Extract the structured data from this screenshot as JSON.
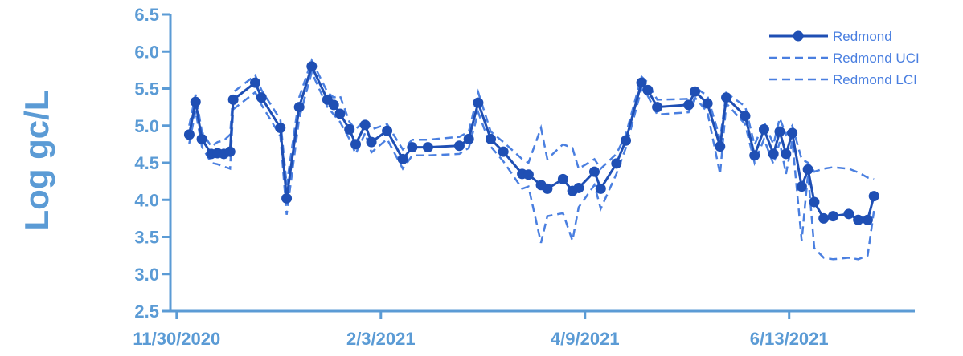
{
  "chart_data": {
    "type": "line",
    "ylabel": "Log gc/L",
    "xlabel": "",
    "ylim": [
      2.5,
      6.5
    ],
    "yticks": [
      "2.5",
      "3.0",
      "3.5",
      "4.0",
      "4.5",
      "5.0",
      "5.5",
      "6.0",
      "6.5"
    ],
    "xlim": [
      "2020-11-28",
      "2021-07-23"
    ],
    "xticks": [
      {
        "date": "2020-11-30",
        "label": "11/30/2020"
      },
      {
        "date": "2021-02-03",
        "label": "2/3/2021"
      },
      {
        "date": "2021-04-09",
        "label": "4/9/2021"
      },
      {
        "date": "2021-06-13",
        "label": "6/13/2021"
      }
    ],
    "legend_position": "top-right",
    "series": [
      {
        "name": "Redmond",
        "style": "solid-markers",
        "color": "#1f4fb4",
        "x": [
          "2020-12-04",
          "2020-12-06",
          "2020-12-08",
          "2020-12-11",
          "2020-12-13",
          "2020-12-15",
          "2020-12-17",
          "2020-12-18",
          "2020-12-25",
          "2020-12-27",
          "2021-01-02",
          "2021-01-04",
          "2021-01-08",
          "2021-01-12",
          "2021-01-17",
          "2021-01-19",
          "2021-01-21",
          "2021-01-24",
          "2021-01-26",
          "2021-01-29",
          "2021-01-31",
          "2021-02-05",
          "2021-02-10",
          "2021-02-13",
          "2021-02-18",
          "2021-02-28",
          "2021-03-03",
          "2021-03-06",
          "2021-03-10",
          "2021-03-14",
          "2021-03-20",
          "2021-03-22",
          "2021-03-26",
          "2021-03-28",
          "2021-04-02",
          "2021-04-05",
          "2021-04-07",
          "2021-04-12",
          "2021-04-14",
          "2021-04-19",
          "2021-04-22",
          "2021-04-27",
          "2021-04-29",
          "2021-05-02",
          "2021-05-12",
          "2021-05-14",
          "2021-05-18",
          "2021-05-22",
          "2021-05-24",
          "2021-05-30",
          "2021-06-02",
          "2021-06-05",
          "2021-06-08",
          "2021-06-10",
          "2021-06-12",
          "2021-06-14",
          "2021-06-17",
          "2021-06-19",
          "2021-06-21",
          "2021-06-24",
          "2021-06-27",
          "2021-07-02",
          "2021-07-05",
          "2021-07-08",
          "2021-07-10"
        ],
        "values": [
          4.88,
          5.32,
          4.82,
          4.62,
          4.63,
          4.62,
          4.65,
          5.35,
          5.58,
          5.38,
          4.97,
          4.02,
          5.25,
          5.8,
          5.35,
          5.28,
          5.16,
          4.95,
          4.75,
          5.01,
          4.78,
          4.93,
          4.55,
          4.71,
          4.71,
          4.73,
          4.82,
          5.31,
          4.82,
          4.65,
          4.35,
          4.34,
          4.2,
          4.15,
          4.28,
          4.12,
          4.16,
          4.38,
          4.15,
          4.49,
          4.8,
          5.58,
          5.48,
          5.25,
          5.28,
          5.46,
          5.3,
          4.72,
          5.38,
          5.13,
          4.6,
          4.95,
          4.62,
          4.92,
          4.62,
          4.9,
          4.18,
          4.41,
          3.97,
          3.75,
          3.78,
          3.81,
          3.73,
          3.73,
          4.05
        ]
      },
      {
        "name": "Redmond UCI",
        "style": "dashed",
        "color": "#4a7fe0",
        "x": [
          "2020-12-04",
          "2020-12-06",
          "2020-12-08",
          "2020-12-11",
          "2020-12-13",
          "2020-12-15",
          "2020-12-17",
          "2020-12-18",
          "2020-12-25",
          "2020-12-27",
          "2021-01-02",
          "2021-01-04",
          "2021-01-08",
          "2021-01-12",
          "2021-01-17",
          "2021-01-19",
          "2021-01-21",
          "2021-01-24",
          "2021-01-26",
          "2021-01-29",
          "2021-01-31",
          "2021-02-05",
          "2021-02-10",
          "2021-02-13",
          "2021-02-18",
          "2021-02-28",
          "2021-03-03",
          "2021-03-06",
          "2021-03-10",
          "2021-03-14",
          "2021-03-20",
          "2021-03-22",
          "2021-03-26",
          "2021-03-28",
          "2021-04-02",
          "2021-04-05",
          "2021-04-07",
          "2021-04-12",
          "2021-04-14",
          "2021-04-19",
          "2021-04-22",
          "2021-04-27",
          "2021-04-29",
          "2021-05-02",
          "2021-05-12",
          "2021-05-14",
          "2021-05-18",
          "2021-05-22",
          "2021-05-24",
          "2021-05-30",
          "2021-06-02",
          "2021-06-05",
          "2021-06-08",
          "2021-06-10",
          "2021-06-12",
          "2021-06-14",
          "2021-06-17",
          "2021-06-19",
          "2021-06-21",
          "2021-06-24",
          "2021-06-27",
          "2021-07-02",
          "2021-07-05",
          "2021-07-08",
          "2021-07-10"
        ],
        "values": [
          5.0,
          5.42,
          4.92,
          4.72,
          4.78,
          4.8,
          4.88,
          5.45,
          5.68,
          5.48,
          5.08,
          4.2,
          5.38,
          5.88,
          5.45,
          5.38,
          5.4,
          5.05,
          4.95,
          5.08,
          4.95,
          5.02,
          4.68,
          4.81,
          4.81,
          4.85,
          4.92,
          5.45,
          4.92,
          4.78,
          4.55,
          4.5,
          4.97,
          4.55,
          4.75,
          4.7,
          4.42,
          4.55,
          4.42,
          4.62,
          4.88,
          5.66,
          5.58,
          5.35,
          5.36,
          5.52,
          5.4,
          4.82,
          5.44,
          5.26,
          4.74,
          5.05,
          4.75,
          5.1,
          4.88,
          5.0,
          4.55,
          4.5,
          4.38,
          4.42,
          4.44,
          4.42,
          4.37,
          4.3,
          4.28
        ]
      },
      {
        "name": "Redmond LCI",
        "style": "dashed",
        "color": "#4a7fe0",
        "x": [
          "2020-12-04",
          "2020-12-06",
          "2020-12-08",
          "2020-12-11",
          "2020-12-13",
          "2020-12-15",
          "2020-12-17",
          "2020-12-18",
          "2020-12-25",
          "2020-12-27",
          "2021-01-02",
          "2021-01-04",
          "2021-01-08",
          "2021-01-12",
          "2021-01-17",
          "2021-01-19",
          "2021-01-21",
          "2021-01-24",
          "2021-01-26",
          "2021-01-29",
          "2021-01-31",
          "2021-02-05",
          "2021-02-10",
          "2021-02-13",
          "2021-02-18",
          "2021-02-28",
          "2021-03-03",
          "2021-03-06",
          "2021-03-10",
          "2021-03-14",
          "2021-03-20",
          "2021-03-22",
          "2021-03-26",
          "2021-03-28",
          "2021-04-02",
          "2021-04-05",
          "2021-04-07",
          "2021-04-12",
          "2021-04-14",
          "2021-04-19",
          "2021-04-22",
          "2021-04-27",
          "2021-04-29",
          "2021-05-02",
          "2021-05-12",
          "2021-05-14",
          "2021-05-18",
          "2021-05-22",
          "2021-05-24",
          "2021-05-30",
          "2021-06-02",
          "2021-06-05",
          "2021-06-08",
          "2021-06-10",
          "2021-06-12",
          "2021-06-14",
          "2021-06-17",
          "2021-06-19",
          "2021-06-21",
          "2021-06-24",
          "2021-06-27",
          "2021-07-02",
          "2021-07-05",
          "2021-07-08",
          "2021-07-10"
        ],
        "values": [
          4.76,
          5.2,
          4.72,
          4.5,
          4.48,
          4.45,
          4.42,
          5.22,
          5.45,
          5.28,
          4.86,
          3.8,
          5.1,
          5.72,
          5.25,
          5.15,
          5.05,
          4.82,
          4.62,
          4.9,
          4.64,
          4.82,
          4.42,
          4.6,
          4.6,
          4.62,
          4.7,
          5.18,
          4.72,
          4.52,
          4.15,
          4.18,
          3.42,
          3.78,
          3.82,
          3.45,
          3.9,
          4.2,
          3.88,
          4.35,
          4.7,
          5.5,
          5.4,
          5.15,
          5.18,
          5.38,
          5.18,
          4.35,
          5.3,
          5.02,
          4.5,
          4.82,
          4.48,
          4.78,
          4.35,
          4.8,
          3.45,
          4.35,
          3.35,
          3.22,
          3.2,
          3.22,
          3.2,
          3.25,
          3.85
        ]
      }
    ]
  }
}
